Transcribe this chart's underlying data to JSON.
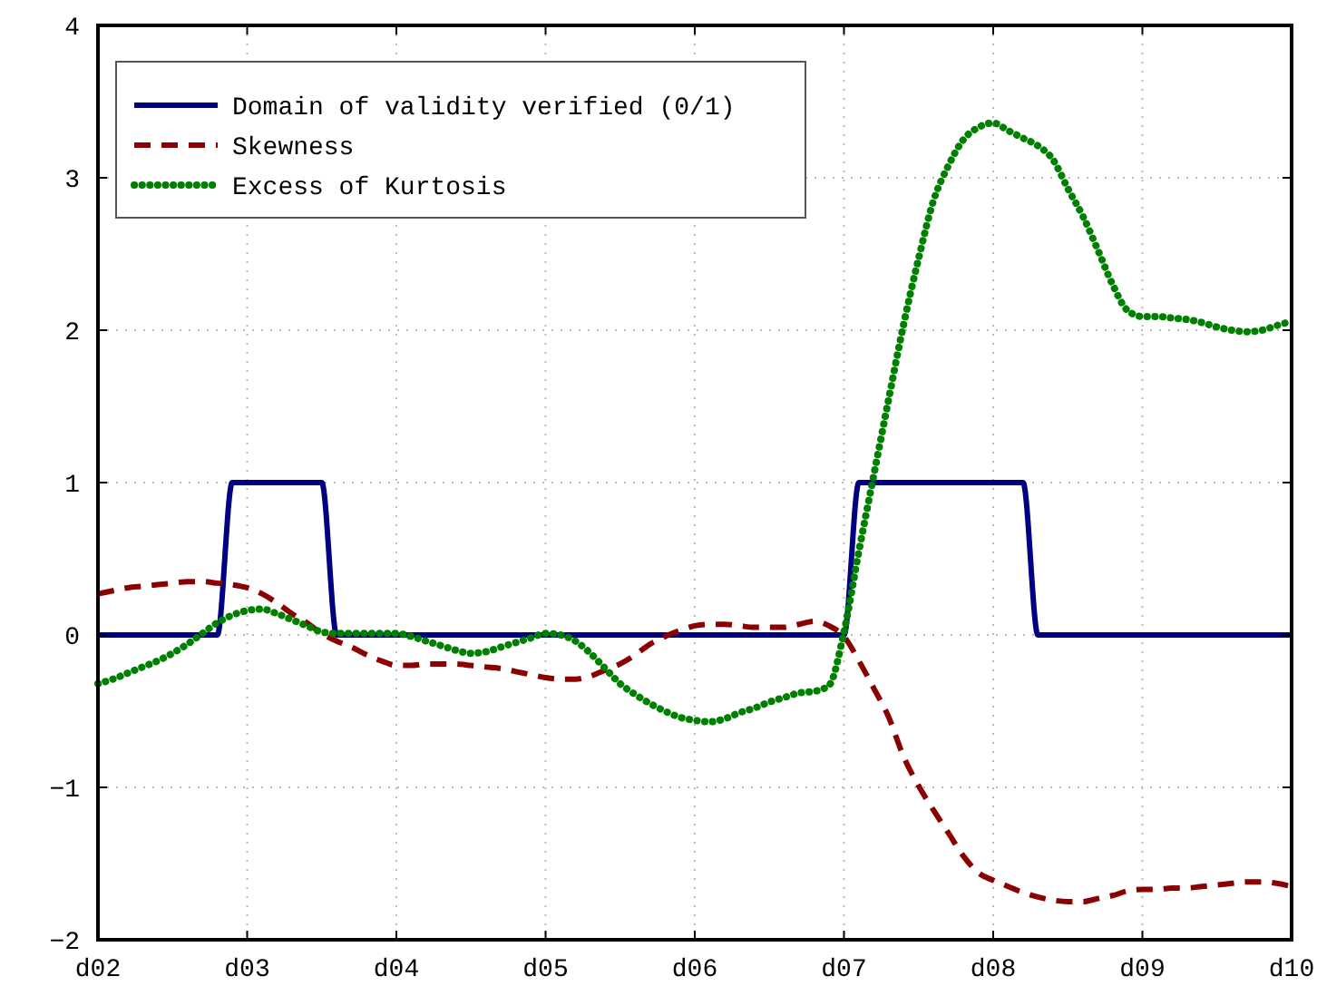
{
  "chart_data": {
    "type": "line",
    "categories": [
      "d02",
      null,
      null,
      null,
      null,
      null,
      null,
      null,
      null,
      null,
      "d03",
      null,
      null,
      null,
      null,
      null,
      null,
      null,
      null,
      null,
      "d04",
      null,
      null,
      null,
      null,
      null,
      null,
      null,
      null,
      null,
      "d05",
      null,
      null,
      null,
      null,
      null,
      null,
      null,
      null,
      null,
      "d06",
      null,
      null,
      null,
      null,
      null,
      null,
      null,
      null,
      null,
      "d07",
      null,
      null,
      null,
      null,
      null,
      null,
      null,
      null,
      null,
      "d08",
      null,
      null,
      null,
      null,
      null,
      null,
      null,
      null,
      null,
      "d09",
      null,
      null,
      null,
      null,
      null,
      null,
      null,
      null,
      null,
      "d10"
    ],
    "ylim": [
      -2,
      4
    ],
    "yticks": [
      -2,
      -1,
      0,
      1,
      2,
      3,
      4
    ],
    "grid": true,
    "legend": "top left",
    "series": [
      {
        "name": "Domain of validity verified (0/1)",
        "color": "#000080",
        "line_style": "solid",
        "values": [
          0,
          0,
          0,
          0,
          0,
          0,
          0,
          0,
          0,
          1,
          1,
          1,
          1,
          1,
          1,
          1,
          0,
          0,
          0,
          0,
          0,
          0,
          0,
          0,
          0,
          0,
          0,
          0,
          0,
          0,
          0,
          0,
          0,
          0,
          0,
          0,
          0,
          0,
          0,
          0,
          0,
          0,
          0,
          0,
          0,
          0,
          0,
          0,
          0,
          0,
          0,
          1,
          1,
          1,
          1,
          1,
          1,
          1,
          1,
          1,
          1,
          1,
          1,
          0,
          0,
          0,
          0,
          0,
          0,
          0,
          0,
          0,
          0,
          0,
          0,
          0,
          0,
          0,
          0,
          0,
          0
        ]
      },
      {
        "name": "Skewness",
        "color": "#8b0000",
        "line_style": "dashed",
        "values": [
          0.27,
          0.29,
          0.31,
          0.32,
          0.33,
          0.34,
          0.35,
          0.35,
          0.34,
          0.33,
          0.31,
          0.27,
          0.21,
          0.14,
          0.08,
          0.01,
          -0.04,
          -0.08,
          -0.13,
          -0.17,
          -0.2,
          -0.2,
          -0.19,
          -0.19,
          -0.19,
          -0.2,
          -0.21,
          -0.22,
          -0.24,
          -0.26,
          -0.28,
          -0.29,
          -0.29,
          -0.27,
          -0.23,
          -0.19,
          -0.13,
          -0.06,
          -0.01,
          0.03,
          0.06,
          0.07,
          0.07,
          0.06,
          0.05,
          0.05,
          0.05,
          0.07,
          0.09,
          0.06,
          -0.01,
          -0.17,
          -0.35,
          -0.54,
          -0.8,
          -0.99,
          -1.15,
          -1.3,
          -1.45,
          -1.56,
          -1.61,
          -1.65,
          -1.69,
          -1.72,
          -1.74,
          -1.75,
          -1.75,
          -1.73,
          -1.71,
          -1.68,
          -1.67,
          -1.67,
          -1.66,
          -1.66,
          -1.65,
          -1.64,
          -1.63,
          -1.62,
          -1.62,
          -1.63,
          -1.65
        ]
      },
      {
        "name": "Excess of Kurtosis",
        "color": "#008000",
        "line_style": "dotted",
        "values": [
          -0.32,
          -0.29,
          -0.25,
          -0.21,
          -0.17,
          -0.12,
          -0.06,
          0.01,
          0.08,
          0.13,
          0.16,
          0.17,
          0.14,
          0.1,
          0.06,
          0.02,
          0.01,
          0.01,
          0.01,
          0.01,
          0.01,
          -0.01,
          -0.04,
          -0.07,
          -0.1,
          -0.12,
          -0.11,
          -0.08,
          -0.05,
          -0.02,
          0.01,
          0,
          -0.04,
          -0.12,
          -0.22,
          -0.32,
          -0.39,
          -0.45,
          -0.5,
          -0.54,
          -0.56,
          -0.57,
          -0.55,
          -0.51,
          -0.48,
          -0.44,
          -0.41,
          -0.38,
          -0.37,
          -0.33,
          0.02,
          0.55,
          1.05,
          1.55,
          2.04,
          2.47,
          2.85,
          3.08,
          3.25,
          3.33,
          3.36,
          3.31,
          3.26,
          3.21,
          3.12,
          2.93,
          2.75,
          2.53,
          2.3,
          2.13,
          2.09,
          2.09,
          2.08,
          2.07,
          2.05,
          2.02,
          2,
          1.99,
          2,
          2.03,
          2.06
        ]
      }
    ]
  }
}
